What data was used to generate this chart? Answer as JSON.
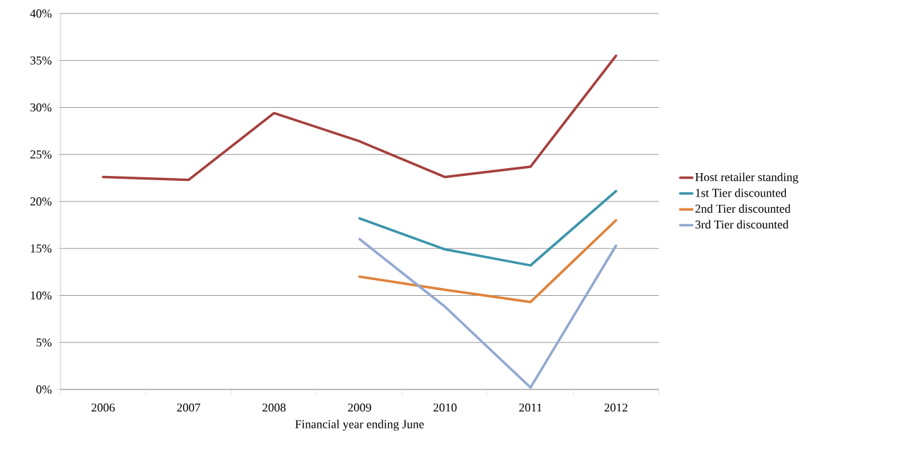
{
  "chart_data": {
    "type": "line",
    "xlabel": "Financial year ending June",
    "categories": [
      "2006",
      "2007",
      "2008",
      "2009",
      "2010",
      "2011",
      "2012"
    ],
    "series": [
      {
        "name": "Host retailer standing",
        "color": "#a5403d",
        "values": [
          22.6,
          22.3,
          29.4,
          26.4,
          22.6,
          23.7,
          35.5
        ]
      },
      {
        "name": "1st Tier discounted",
        "color": "#3c95ab",
        "values": [
          null,
          null,
          null,
          18.2,
          14.9,
          13.2,
          21.1
        ]
      },
      {
        "name": "2nd Tier discounted",
        "color": "#e0823a",
        "values": [
          null,
          null,
          null,
          12.0,
          10.6,
          9.3,
          18.0
        ]
      },
      {
        "name": "3rd Tier discounted",
        "color": "#93a9d1",
        "values": [
          null,
          null,
          null,
          16.0,
          8.8,
          0.2,
          15.3
        ]
      }
    ],
    "ylim": [
      0,
      40
    ],
    "yticks": [
      {
        "value": 0,
        "label": "0%"
      },
      {
        "value": 5,
        "label": "5%"
      },
      {
        "value": 10,
        "label": "10%"
      },
      {
        "value": 15,
        "label": "15%"
      },
      {
        "value": 20,
        "label": "20%"
      },
      {
        "value": 25,
        "label": "25%"
      },
      {
        "value": 30,
        "label": "30%"
      },
      {
        "value": 35,
        "label": "35%"
      },
      {
        "value": 40,
        "label": "40%"
      }
    ],
    "grid": "y",
    "legend": "right",
    "marker": "none",
    "line_style": "solid"
  }
}
